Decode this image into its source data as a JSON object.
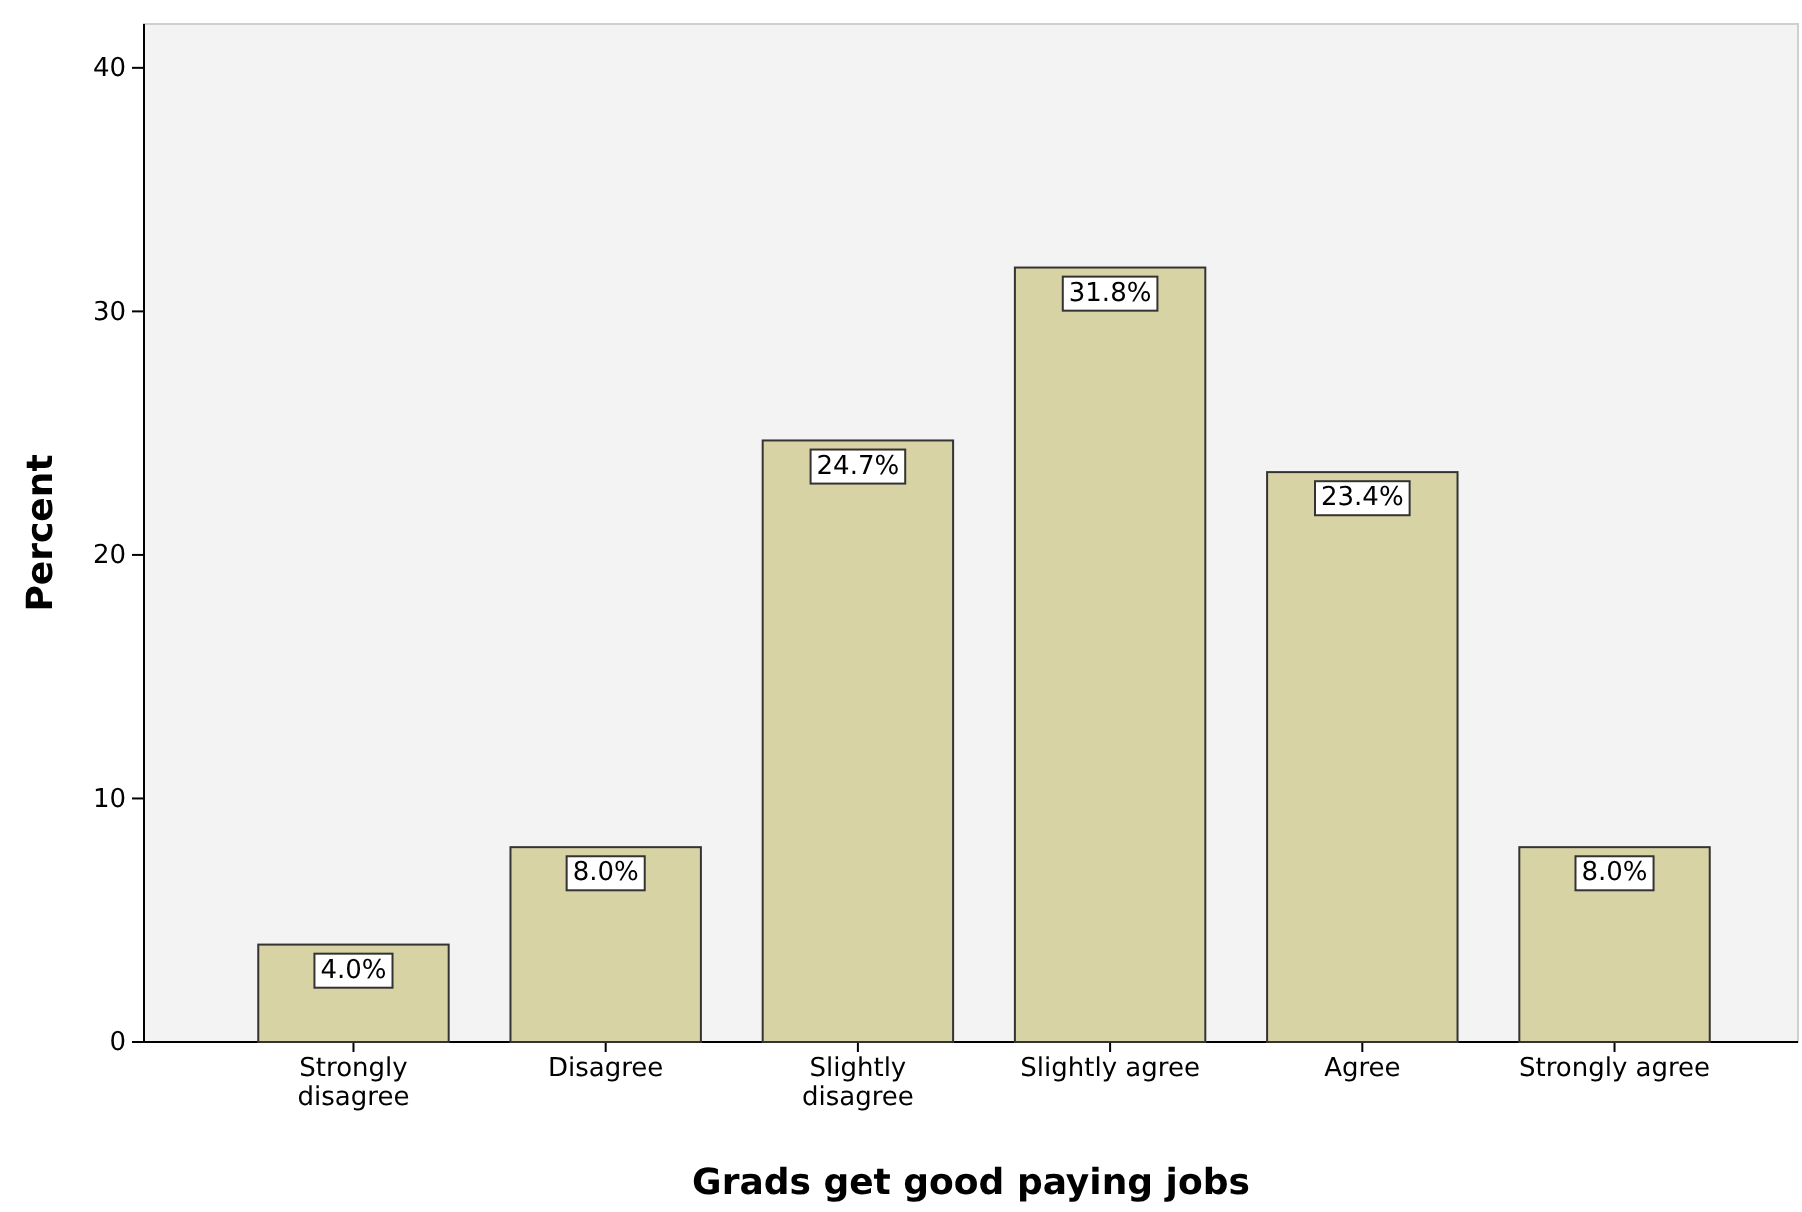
{
  "chart_data": {
    "type": "bar",
    "xlabel": "Grads get good paying jobs",
    "ylabel": "Percent",
    "categories": [
      "Strongly disagree",
      "Disagree",
      "Slightly disagree",
      "Slightly agree",
      "Agree",
      "Strongly agree"
    ],
    "values": [
      4.0,
      8.0,
      24.7,
      31.8,
      23.4,
      8.0
    ],
    "value_labels": [
      "4.0%",
      "8.0%",
      "24.7%",
      "31.8%",
      "23.4%",
      "8.0%"
    ],
    "color": "#d8d3a5",
    "ylim": [
      0,
      41.8
    ],
    "yticks": [
      0,
      10,
      20,
      30,
      40
    ],
    "grid": false
  }
}
